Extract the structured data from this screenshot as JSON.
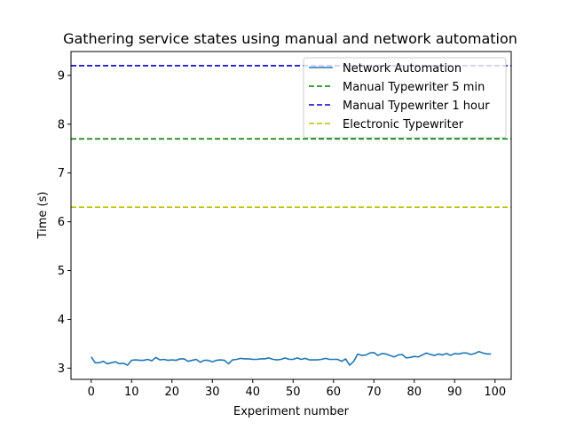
{
  "chart_data": {
    "type": "line",
    "title": "Gathering service states using manual and network automation",
    "xlabel": "Experiment number",
    "ylabel": "Time (s)",
    "xlim": [
      -5,
      104
    ],
    "ylim": [
      2.77,
      9.49
    ],
    "x_ticks": [
      0,
      10,
      20,
      30,
      40,
      50,
      60,
      70,
      80,
      90,
      100
    ],
    "y_ticks": [
      3,
      4,
      5,
      6,
      7,
      8,
      9
    ],
    "grid": false,
    "legend_position": "top-right",
    "series": [
      {
        "name": "Network Automation",
        "style": "solid",
        "color": "#1f77b4",
        "x": [
          0,
          1,
          2,
          3,
          4,
          5,
          6,
          7,
          8,
          9,
          10,
          11,
          12,
          13,
          14,
          15,
          16,
          17,
          18,
          19,
          20,
          21,
          22,
          23,
          24,
          25,
          26,
          27,
          28,
          29,
          30,
          31,
          32,
          33,
          34,
          35,
          36,
          37,
          38,
          39,
          40,
          41,
          42,
          43,
          44,
          45,
          46,
          47,
          48,
          49,
          50,
          51,
          52,
          53,
          54,
          55,
          56,
          57,
          58,
          59,
          60,
          61,
          62,
          63,
          64,
          65,
          66,
          67,
          68,
          69,
          70,
          71,
          72,
          73,
          74,
          75,
          76,
          77,
          78,
          79,
          80,
          81,
          82,
          83,
          84,
          85,
          86,
          87,
          88,
          89,
          90,
          91,
          92,
          93,
          94,
          95,
          96,
          97,
          98,
          99
        ],
        "y": [
          3.23,
          3.11,
          3.11,
          3.14,
          3.09,
          3.11,
          3.13,
          3.09,
          3.1,
          3.06,
          3.16,
          3.17,
          3.16,
          3.16,
          3.18,
          3.15,
          3.22,
          3.17,
          3.18,
          3.16,
          3.17,
          3.16,
          3.19,
          3.19,
          3.14,
          3.16,
          3.18,
          3.12,
          3.16,
          3.16,
          3.13,
          3.16,
          3.17,
          3.16,
          3.09,
          3.17,
          3.18,
          3.2,
          3.19,
          3.19,
          3.18,
          3.18,
          3.19,
          3.19,
          3.21,
          3.18,
          3.17,
          3.18,
          3.21,
          3.18,
          3.18,
          3.21,
          3.18,
          3.2,
          3.17,
          3.17,
          3.17,
          3.18,
          3.2,
          3.18,
          3.18,
          3.18,
          3.14,
          3.19,
          3.06,
          3.14,
          3.29,
          3.26,
          3.27,
          3.31,
          3.32,
          3.26,
          3.3,
          3.29,
          3.26,
          3.23,
          3.27,
          3.28,
          3.21,
          3.22,
          3.24,
          3.23,
          3.27,
          3.31,
          3.28,
          3.26,
          3.29,
          3.27,
          3.3,
          3.26,
          3.3,
          3.29,
          3.31,
          3.31,
          3.28,
          3.3,
          3.34,
          3.31,
          3.29,
          3.29
        ]
      },
      {
        "name": "Manual Typewriter 5 min",
        "style": "dashed",
        "color": "#008000",
        "value": 7.7
      },
      {
        "name": "Manual Typewriter 1 hour",
        "style": "dashed",
        "color": "#0000cc",
        "value": 9.2
      },
      {
        "name": "Electronic Typewriter",
        "style": "dashed",
        "color": "#bfbf00",
        "value": 6.3
      }
    ]
  }
}
